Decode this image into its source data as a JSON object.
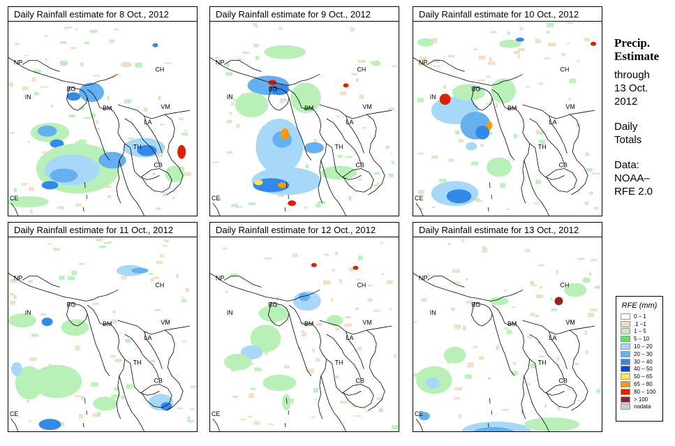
{
  "panels": [
    {
      "title": "Daily Rainfall estimate for  8 Oct., 2012",
      "date": "8 Oct. 2012"
    },
    {
      "title": "Daily Rainfall estimate for  9 Oct., 2012",
      "date": "9 Oct. 2012"
    },
    {
      "title": "Daily Rainfall estimate for  10 Oct., 2012",
      "date": "10 Oct. 2012"
    },
    {
      "title": "Daily Rainfall estimate for  11 Oct., 2012",
      "date": "11 Oct. 2012"
    },
    {
      "title": "Daily Rainfall estimate for  12 Oct., 2012",
      "date": "12 Oct. 2012"
    },
    {
      "title": "Daily Rainfall estimate for  13 Oct., 2012",
      "date": "13 Oct. 2012"
    }
  ],
  "country_labels": {
    "np": "NP",
    "ch": "CH",
    "in": "IN",
    "bg": "BG",
    "bm": "BM",
    "vm": "VM",
    "la": "LA",
    "th": "TH",
    "cb": "CB",
    "ce": "CE"
  },
  "side": {
    "title_line1": "Precip.",
    "title_line2": "Estimate",
    "through": "through",
    "end_date_line1": "13 Oct.",
    "end_date_line2": "2012",
    "daily_line1": "Daily",
    "daily_line2": "Totals",
    "data_line1": "Data:",
    "data_line2": "NOAA–",
    "data_line3": "RFE 2.0"
  },
  "legend": {
    "title": "RFE (mm)",
    "items": [
      {
        "label": "0 – 1",
        "color": "#ffffff"
      },
      {
        "label": ".1 –1",
        "color": "#f0dcc0"
      },
      {
        "label": "1 – 5",
        "color": "#b8f0b8"
      },
      {
        "label": "5 – 10",
        "color": "#66dd66"
      },
      {
        "label": "10 – 20",
        "color": "#a8d8f8"
      },
      {
        "label": "20 – 30",
        "color": "#66b0f0"
      },
      {
        "label": "30 – 40",
        "color": "#3388e8"
      },
      {
        "label": "40 – 50",
        "color": "#1144cc"
      },
      {
        "label": "50 – 65",
        "color": "#ffe066"
      },
      {
        "label": "65 – 80",
        "color": "#ff9900"
      },
      {
        "label": "80 – 100",
        "color": "#dd2200"
      },
      {
        "label": "> 100",
        "color": "#992222"
      },
      {
        "label": "nodata",
        "color": "#cccccc"
      }
    ]
  },
  "colors": {
    "trace": "#f0dcc0",
    "light_green": "#b8f0b8",
    "green": "#66dd66",
    "light_blue": "#a8d8f8",
    "blue": "#66b0f0",
    "mid_blue": "#3388e8",
    "dark_blue": "#1144cc",
    "yellow": "#ffe066",
    "orange": "#ff9900",
    "red": "#dd2200",
    "dark_red": "#992222"
  }
}
